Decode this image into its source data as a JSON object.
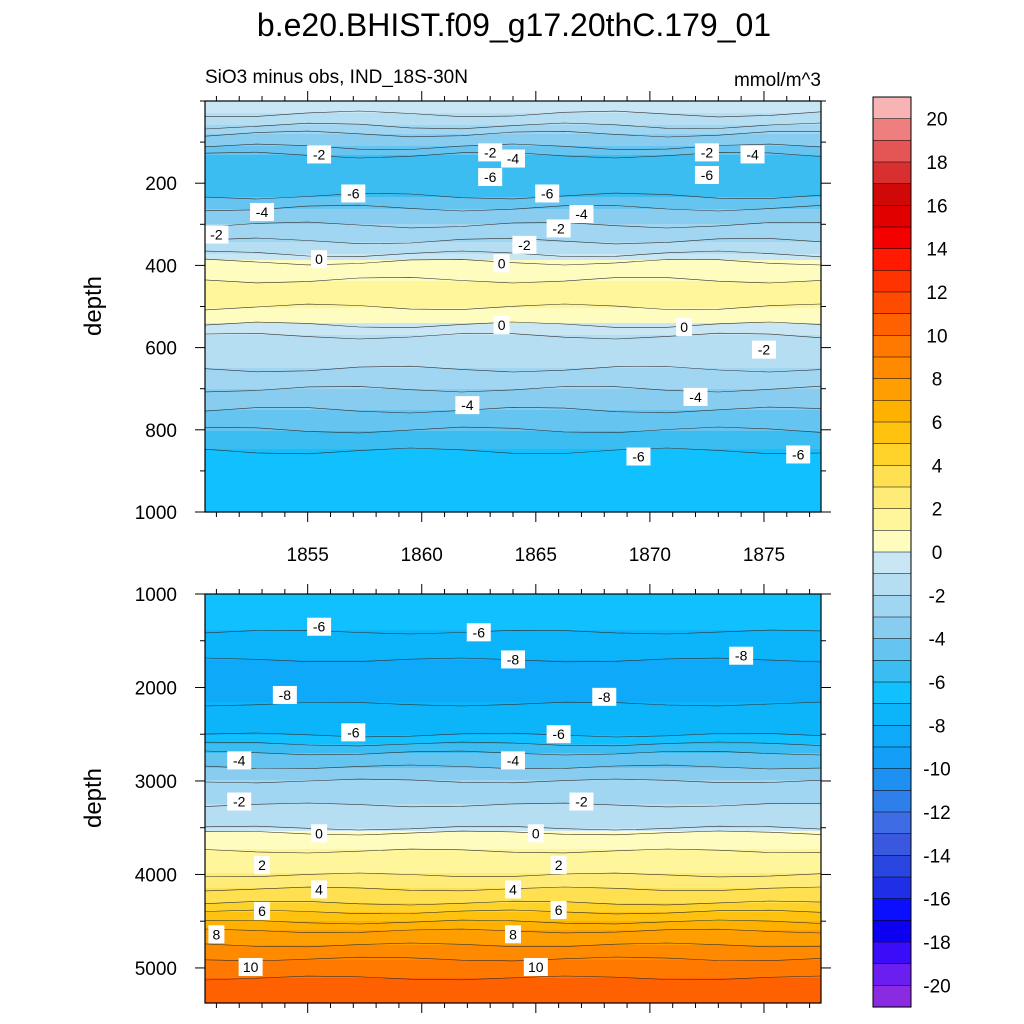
{
  "chart_data": {
    "type": "heatmap",
    "title": "b.e20.BHIST.f09_g17.20thC.179_01",
    "subtitle_left": "SiO3 minus obs, IND_18S-30N",
    "subtitle_right": "mmol/m^3",
    "panels": [
      {
        "name": "upper",
        "ylabel": "depth",
        "ylim": [
          0,
          1000
        ],
        "y_inverted": true,
        "y_ticks": [
          "200",
          "400",
          "600",
          "800",
          "1000"
        ],
        "y_tick_values": [
          200,
          400,
          600,
          800,
          1000
        ],
        "xlim": [
          1850.5,
          1877.5
        ],
        "x_ticks": [
          "1855",
          "1860",
          "1865",
          "1870",
          "1875"
        ],
        "x_tick_values": [
          1855,
          1860,
          1865,
          1870,
          1875
        ],
        "depth_profile": [
          [
            0,
            -1
          ],
          [
            20,
            -0.5
          ],
          [
            40,
            -1.5
          ],
          [
            60,
            -2
          ],
          [
            80,
            -3
          ],
          [
            110,
            -4
          ],
          [
            150,
            -6
          ],
          [
            210,
            -6
          ],
          [
            230,
            -5
          ],
          [
            260,
            -4
          ],
          [
            300,
            -3
          ],
          [
            340,
            -2
          ],
          [
            370,
            -1
          ],
          [
            400,
            0.5
          ],
          [
            470,
            1.5
          ],
          [
            530,
            0.5
          ],
          [
            570,
            -1
          ],
          [
            600,
            -1.5
          ],
          [
            650,
            -2
          ],
          [
            700,
            -3
          ],
          [
            750,
            -4
          ],
          [
            800,
            -5
          ],
          [
            850,
            -6
          ],
          [
            900,
            -6.5
          ],
          [
            1000,
            -6.5
          ]
        ],
        "contour_labels": [
          {
            "text": "-2",
            "x": 1851,
            "y": 325
          },
          {
            "text": "-2",
            "x": 1855.5,
            "y": 130
          },
          {
            "text": "-2",
            "x": 1863,
            "y": 125
          },
          {
            "text": "-2",
            "x": 1864.5,
            "y": 350
          },
          {
            "text": "-2",
            "x": 1866,
            "y": 310
          },
          {
            "text": "-2",
            "x": 1872.5,
            "y": 125
          },
          {
            "text": "-2",
            "x": 1875,
            "y": 605
          },
          {
            "text": "-4",
            "x": 1853,
            "y": 270
          },
          {
            "text": "-4",
            "x": 1862,
            "y": 740
          },
          {
            "text": "-4",
            "x": 1864,
            "y": 140
          },
          {
            "text": "-4",
            "x": 1867,
            "y": 275
          },
          {
            "text": "-4",
            "x": 1872,
            "y": 720
          },
          {
            "text": "-4",
            "x": 1874.5,
            "y": 130
          },
          {
            "text": "-6",
            "x": 1857,
            "y": 225
          },
          {
            "text": "-6",
            "x": 1863,
            "y": 185
          },
          {
            "text": "-6",
            "x": 1865.5,
            "y": 225
          },
          {
            "text": "-6",
            "x": 1869.5,
            "y": 865
          },
          {
            "text": "-6",
            "x": 1872.5,
            "y": 180
          },
          {
            "text": "-6",
            "x": 1876.5,
            "y": 860
          },
          {
            "text": "0",
            "x": 1855.5,
            "y": 385
          },
          {
            "text": "0",
            "x": 1863.5,
            "y": 395
          },
          {
            "text": "0",
            "x": 1863.5,
            "y": 545
          },
          {
            "text": "0",
            "x": 1871.5,
            "y": 550
          }
        ]
      },
      {
        "name": "lower",
        "ylabel": "depth",
        "ylim": [
          1000,
          5375
        ],
        "y_inverted": true,
        "y_ticks": [
          "1000",
          "2000",
          "3000",
          "4000",
          "5000"
        ],
        "y_tick_values": [
          1000,
          2000,
          3000,
          4000,
          5000
        ],
        "xlim": [
          1850.5,
          1877.5
        ],
        "x_tick_values": [
          1855,
          1860,
          1865,
          1870,
          1875
        ],
        "depth_profile": [
          [
            1000,
            -6.3
          ],
          [
            1400,
            -7
          ],
          [
            1700,
            -8
          ],
          [
            2100,
            -8.2
          ],
          [
            2500,
            -7
          ],
          [
            2700,
            -5
          ],
          [
            3000,
            -3
          ],
          [
            3500,
            -1
          ],
          [
            3560,
            0.3
          ],
          [
            4000,
            2
          ],
          [
            4300,
            4
          ],
          [
            4600,
            7
          ],
          [
            4900,
            9
          ],
          [
            5200,
            10.5
          ],
          [
            5375,
            11
          ]
        ],
        "contour_labels": [
          {
            "text": "-6",
            "x": 1855.5,
            "y": 1350
          },
          {
            "text": "-6",
            "x": 1862.5,
            "y": 1410
          },
          {
            "text": "-6",
            "x": 1866,
            "y": 2500
          },
          {
            "text": "-6",
            "x": 1857,
            "y": 2480
          },
          {
            "text": "-8",
            "x": 1854,
            "y": 2080
          },
          {
            "text": "-8",
            "x": 1864,
            "y": 1700
          },
          {
            "text": "-8",
            "x": 1868,
            "y": 2100
          },
          {
            "text": "-8",
            "x": 1874,
            "y": 1660
          },
          {
            "text": "-4",
            "x": 1852,
            "y": 2780
          },
          {
            "text": "-4",
            "x": 1864,
            "y": 2780
          },
          {
            "text": "-2",
            "x": 1852,
            "y": 3220
          },
          {
            "text": "-2",
            "x": 1867,
            "y": 3220
          },
          {
            "text": "0",
            "x": 1855.5,
            "y": 3560
          },
          {
            "text": "0",
            "x": 1865,
            "y": 3560
          },
          {
            "text": "2",
            "x": 1853,
            "y": 3900
          },
          {
            "text": "2",
            "x": 1866,
            "y": 3900
          },
          {
            "text": "4",
            "x": 1855.5,
            "y": 4160
          },
          {
            "text": "4",
            "x": 1864,
            "y": 4160
          },
          {
            "text": "6",
            "x": 1853,
            "y": 4390
          },
          {
            "text": "6",
            "x": 1866,
            "y": 4380
          },
          {
            "text": "8",
            "x": 1851,
            "y": 4640
          },
          {
            "text": "8",
            "x": 1864,
            "y": 4640
          },
          {
            "text": "10",
            "x": 1852.5,
            "y": 4990
          },
          {
            "text": "10",
            "x": 1865,
            "y": 4990
          }
        ]
      }
    ],
    "colorbar": {
      "min": -21,
      "max": 21,
      "step": 1,
      "tick_labels": [
        "20",
        "18",
        "16",
        "14",
        "12",
        "10",
        "8",
        "6",
        "4",
        "2",
        "0",
        "-2",
        "-4",
        "-6",
        "-8",
        "-10",
        "-12",
        "-14",
        "-16",
        "-18",
        "-20"
      ],
      "tick_values": [
        20,
        18,
        16,
        14,
        12,
        10,
        8,
        6,
        4,
        2,
        0,
        -2,
        -4,
        -6,
        -8,
        -10,
        -12,
        -14,
        -16,
        -18,
        -20
      ],
      "colors": [
        {
          "lo": -21,
          "hi": -20,
          "color": "#8a2be2"
        },
        {
          "lo": -20,
          "hi": -19,
          "color": "#6a1ff0"
        },
        {
          "lo": -19,
          "hi": -18,
          "color": "#3a0cf8"
        },
        {
          "lo": -18,
          "hi": -17,
          "color": "#0d00f0"
        },
        {
          "lo": -17,
          "hi": -16,
          "color": "#0a10ff"
        },
        {
          "lo": -16,
          "hi": -15,
          "color": "#1f2fe6"
        },
        {
          "lo": -15,
          "hi": -14,
          "color": "#2845e0"
        },
        {
          "lo": -14,
          "hi": -13,
          "color": "#3a58dd"
        },
        {
          "lo": -13,
          "hi": -12,
          "color": "#3e6ce4"
        },
        {
          "lo": -12,
          "hi": -11,
          "color": "#2f7fea"
        },
        {
          "lo": -11,
          "hi": -10,
          "color": "#1e90f2"
        },
        {
          "lo": -10,
          "hi": -9,
          "color": "#139ff7"
        },
        {
          "lo": -9,
          "hi": -8,
          "color": "#0ea9f8"
        },
        {
          "lo": -8,
          "hi": -7,
          "color": "#0cb4fa"
        },
        {
          "lo": -7,
          "hi": -6,
          "color": "#10c0ff"
        },
        {
          "lo": -6,
          "hi": -5,
          "color": "#3cbdf2"
        },
        {
          "lo": -5,
          "hi": -4,
          "color": "#66c4f0"
        },
        {
          "lo": -4,
          "hi": -3,
          "color": "#88cdf0"
        },
        {
          "lo": -3,
          "hi": -2,
          "color": "#a0d6f2"
        },
        {
          "lo": -2,
          "hi": -1,
          "color": "#b6def3"
        },
        {
          "lo": -1,
          "hi": 0,
          "color": "#c8e6f4"
        },
        {
          "lo": 0,
          "hi": 1,
          "color": "#fffcc0"
        },
        {
          "lo": 1,
          "hi": 2,
          "color": "#fff59a"
        },
        {
          "lo": 2,
          "hi": 3,
          "color": "#ffec78"
        },
        {
          "lo": 3,
          "hi": 4,
          "color": "#ffe050"
        },
        {
          "lo": 4,
          "hi": 5,
          "color": "#ffd22a"
        },
        {
          "lo": 5,
          "hi": 6,
          "color": "#ffc30f"
        },
        {
          "lo": 6,
          "hi": 7,
          "color": "#ffb100"
        },
        {
          "lo": 7,
          "hi": 8,
          "color": "#ff9e00"
        },
        {
          "lo": 8,
          "hi": 9,
          "color": "#ff8a00"
        },
        {
          "lo": 9,
          "hi": 10,
          "color": "#ff7800"
        },
        {
          "lo": 10,
          "hi": 11,
          "color": "#ff6000"
        },
        {
          "lo": 11,
          "hi": 12,
          "color": "#ff4b00"
        },
        {
          "lo": 12,
          "hi": 13,
          "color": "#ff3300"
        },
        {
          "lo": 13,
          "hi": 14,
          "color": "#ff1a00"
        },
        {
          "lo": 14,
          "hi": 15,
          "color": "#f50000"
        },
        {
          "lo": 15,
          "hi": 16,
          "color": "#e00000"
        },
        {
          "lo": 16,
          "hi": 17,
          "color": "#d10808"
        },
        {
          "lo": 17,
          "hi": 18,
          "color": "#d83030"
        },
        {
          "lo": 18,
          "hi": 19,
          "color": "#e45555"
        },
        {
          "lo": 19,
          "hi": 20,
          "color": "#ef7f7f"
        },
        {
          "lo": 20,
          "hi": 21,
          "color": "#f8b4b4"
        }
      ]
    }
  }
}
